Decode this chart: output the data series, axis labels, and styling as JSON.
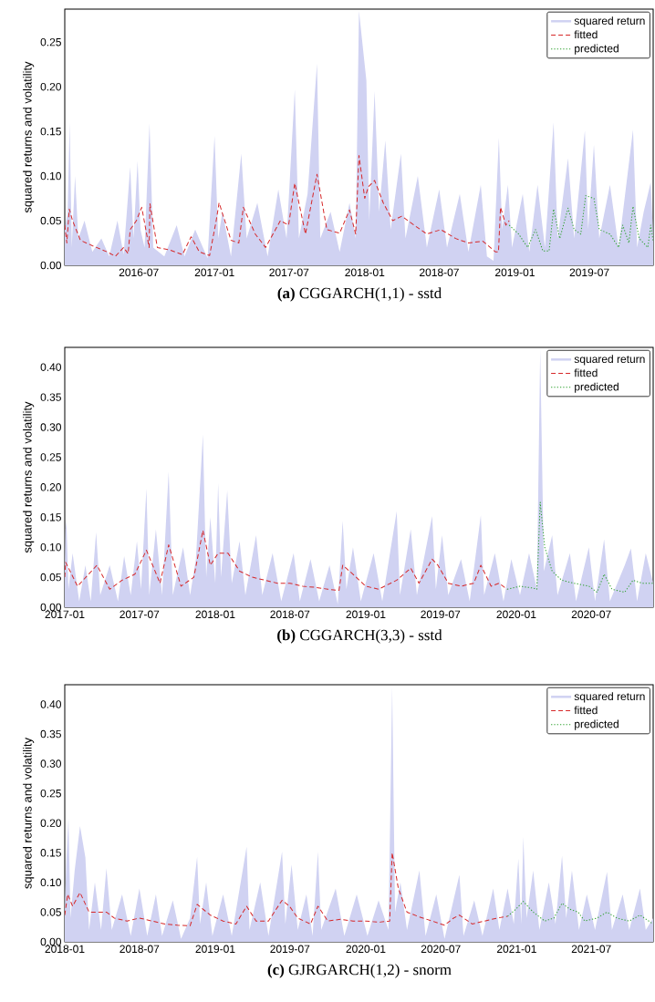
{
  "chart_data": [
    {
      "type": "line",
      "title": "**(a)** CGGARCH(1,1) - sstd",
      "ylabel": "squared returns and volatility",
      "legend": "top right",
      "xlim": [
        "2016-01-03",
        "2019-12-03"
      ],
      "ylim": [
        0,
        0.287
      ],
      "xticks": [
        {
          "value": "2016-07-01",
          "label": "2016-07"
        },
        {
          "value": "2017-01-01",
          "label": "2017-01"
        },
        {
          "value": "2017-07-01",
          "label": "2017-07"
        },
        {
          "value": "2018-01-01",
          "label": "2018-01"
        },
        {
          "value": "2018-07-01",
          "label": "2018-07"
        },
        {
          "value": "2019-01-01",
          "label": "2019-01"
        },
        {
          "value": "2019-07-01",
          "label": "2019-07"
        }
      ],
      "yticks": [
        {
          "value": 0,
          "label": "0.00"
        },
        {
          "value": 0.05,
          "label": "0.05"
        },
        {
          "value": 0.1,
          "label": "0.10"
        },
        {
          "value": 0.15,
          "label": "0.15"
        },
        {
          "value": 0.2,
          "label": "0.20"
        },
        {
          "value": 0.25,
          "label": "0.25"
        }
      ],
      "series": [
        {
          "name": "squared return",
          "type": "area",
          "color": "#d0d2f2",
          "x": [
            "2016-01-03",
            "2016-01-10",
            "2016-01-15",
            "2016-01-20",
            "2016-01-28",
            "2016-02-05",
            "2016-02-20",
            "2016-03-10",
            "2016-04-01",
            "2016-04-20",
            "2016-05-10",
            "2016-05-25",
            "2016-06-10",
            "2016-06-18",
            "2016-06-28",
            "2016-07-05",
            "2016-07-15",
            "2016-07-27",
            "2016-08-05",
            "2016-09-01",
            "2016-10-01",
            "2016-10-20",
            "2016-11-15",
            "2016-12-15",
            "2017-01-01",
            "2017-01-10",
            "2017-01-20",
            "2017-02-10",
            "2017-03-07",
            "2017-03-20",
            "2017-04-15",
            "2017-05-10",
            "2017-06-05",
            "2017-06-25",
            "2017-07-15",
            "2017-07-25",
            "2017-08-15",
            "2017-09-07",
            "2017-09-15",
            "2017-10-10",
            "2017-11-01",
            "2017-11-25",
            "2017-12-10",
            "2017-12-18",
            "2018-01-05",
            "2018-01-12",
            "2018-01-25",
            "2018-02-05",
            "2018-02-20",
            "2018-03-05",
            "2018-03-30",
            "2018-04-10",
            "2018-05-10",
            "2018-06-01",
            "2018-07-01",
            "2018-07-20",
            "2018-08-20",
            "2018-09-10",
            "2018-10-10",
            "2018-10-25",
            "2018-11-10",
            "2018-11-23",
            "2018-12-01",
            "2018-12-15",
            "2018-12-25",
            "2019-01-20",
            "2019-02-05",
            "2019-02-25",
            "2019-03-15",
            "2019-04-05",
            "2019-04-15",
            "2019-05-10",
            "2019-05-25",
            "2019-06-20",
            "2019-06-28",
            "2019-07-12",
            "2019-07-25",
            "2019-08-20",
            "2019-09-10",
            "2019-10-15",
            "2019-10-25",
            "2019-11-10",
            "2019-11-27",
            "2019-12-03"
          ],
          "values": [
            0.04,
            0.06,
            0.16,
            0.02,
            0.1,
            0.03,
            0.05,
            0.015,
            0.03,
            0.01,
            0.05,
            0.012,
            0.11,
            0.03,
            0.117,
            0.04,
            0.02,
            0.159,
            0.02,
            0.01,
            0.045,
            0.01,
            0.04,
            0.008,
            0.145,
            0.03,
            0.06,
            0.01,
            0.125,
            0.03,
            0.07,
            0.01,
            0.085,
            0.03,
            0.197,
            0.03,
            0.08,
            0.226,
            0.03,
            0.06,
            0.015,
            0.07,
            0.03,
            0.285,
            0.207,
            0.05,
            0.195,
            0.06,
            0.14,
            0.04,
            0.125,
            0.03,
            0.1,
            0.02,
            0.085,
            0.02,
            0.08,
            0.015,
            0.09,
            0.01,
            0.005,
            0.143,
            0.04,
            0.09,
            0.02,
            0.08,
            0.015,
            0.09,
            0.02,
            0.16,
            0.03,
            0.12,
            0.03,
            0.151,
            0.04,
            0.135,
            0.03,
            0.09,
            0.02,
            0.152,
            0.02,
            0.06,
            0.093,
            0.03
          ]
        },
        {
          "name": "fitted",
          "line_style": "dashed",
          "color": "#d62728",
          "x": [
            "2016-01-03",
            "2016-01-08",
            "2016-01-14",
            "2016-01-22",
            "2016-02-10",
            "2016-03-10",
            "2016-04-15",
            "2016-05-05",
            "2016-05-25",
            "2016-06-05",
            "2016-06-10",
            "2016-06-25",
            "2016-07-08",
            "2016-07-20",
            "2016-07-26",
            "2016-07-28",
            "2016-08-15",
            "2016-09-15",
            "2016-10-15",
            "2016-11-05",
            "2016-11-25",
            "2016-12-20",
            "2017-01-05",
            "2017-01-12",
            "2017-02-10",
            "2017-03-01",
            "2017-03-12",
            "2017-04-10",
            "2017-05-05",
            "2017-06-10",
            "2017-06-30",
            "2017-07-15",
            "2017-08-10",
            "2017-09-07",
            "2017-10-01",
            "2017-11-01",
            "2017-11-25",
            "2017-12-10",
            "2017-12-18",
            "2018-01-01",
            "2018-01-10",
            "2018-01-25",
            "2018-02-15",
            "2018-03-10",
            "2018-04-01",
            "2018-05-01",
            "2018-06-01",
            "2018-07-05",
            "2018-08-10",
            "2018-09-10",
            "2018-10-15",
            "2018-11-15",
            "2018-11-22",
            "2018-11-27",
            "2018-12-10",
            "2018-12-18"
          ],
          "values": [
            0.045,
            0.025,
            0.063,
            0.05,
            0.028,
            0.022,
            0.015,
            0.01,
            0.02,
            0.013,
            0.04,
            0.05,
            0.065,
            0.035,
            0.02,
            0.069,
            0.02,
            0.017,
            0.012,
            0.032,
            0.015,
            0.011,
            0.05,
            0.07,
            0.028,
            0.025,
            0.065,
            0.035,
            0.02,
            0.05,
            0.045,
            0.092,
            0.035,
            0.102,
            0.04,
            0.036,
            0.062,
            0.035,
            0.123,
            0.075,
            0.088,
            0.095,
            0.07,
            0.05,
            0.055,
            0.045,
            0.035,
            0.04,
            0.03,
            0.025,
            0.027,
            0.015,
            0.015,
            0.065,
            0.045,
            0.05
          ]
        },
        {
          "name": "predicted",
          "line_style": "dotted",
          "color": "#2ca02c",
          "x": [
            "2018-12-18",
            "2019-01-10",
            "2019-02-01",
            "2019-02-20",
            "2019-03-10",
            "2019-03-25",
            "2019-04-05",
            "2019-04-20",
            "2019-05-10",
            "2019-05-25",
            "2019-06-10",
            "2019-06-22",
            "2019-07-12",
            "2019-07-25",
            "2019-08-20",
            "2019-09-10",
            "2019-09-20",
            "2019-10-05",
            "2019-10-15",
            "2019-10-30",
            "2019-11-20",
            "2019-11-27",
            "2019-12-03"
          ],
          "values": [
            0.045,
            0.035,
            0.02,
            0.04,
            0.016,
            0.016,
            0.063,
            0.03,
            0.064,
            0.04,
            0.035,
            0.078,
            0.075,
            0.04,
            0.035,
            0.02,
            0.045,
            0.025,
            0.066,
            0.03,
            0.02,
            0.045,
            0.027
          ]
        }
      ]
    },
    {
      "type": "line",
      "title": "**(b)** CGGARCH(3,3) - sstd",
      "ylabel": "squared returns and volatility",
      "legend": "top right",
      "xlim": [
        "2017-01-01",
        "2020-11-28"
      ],
      "ylim": [
        0,
        0.433
      ],
      "xticks": [
        {
          "value": "2017-01-01",
          "label": "2017-01"
        },
        {
          "value": "2017-07-01",
          "label": "2017-07"
        },
        {
          "value": "2018-01-01",
          "label": "2018-01"
        },
        {
          "value": "2018-07-01",
          "label": "2018-07"
        },
        {
          "value": "2019-01-01",
          "label": "2019-01"
        },
        {
          "value": "2019-07-01",
          "label": "2019-07"
        },
        {
          "value": "2020-01-01",
          "label": "2020-01"
        },
        {
          "value": "2020-07-01",
          "label": "2020-07"
        }
      ],
      "yticks": [
        {
          "value": 0,
          "label": "0.00"
        },
        {
          "value": 0.05,
          "label": "0.05"
        },
        {
          "value": 0.1,
          "label": "0.10"
        },
        {
          "value": 0.15,
          "label": "0.15"
        },
        {
          "value": 0.2,
          "label": "0.20"
        },
        {
          "value": 0.25,
          "label": "0.25"
        },
        {
          "value": 0.3,
          "label": "0.30"
        },
        {
          "value": 0.35,
          "label": "0.35"
        },
        {
          "value": 0.4,
          "label": "0.40"
        }
      ],
      "series": [
        {
          "name": "squared return",
          "type": "area",
          "color": "#d0d2f2",
          "x": [
            "2017-01-01",
            "2017-01-03",
            "2017-01-05",
            "2017-01-10",
            "2017-01-20",
            "2017-02-05",
            "2017-02-20",
            "2017-03-05",
            "2017-03-18",
            "2017-03-28",
            "2017-04-20",
            "2017-05-10",
            "2017-05-25",
            "2017-06-10",
            "2017-06-25",
            "2017-07-05",
            "2017-07-18",
            "2017-07-25",
            "2017-08-10",
            "2017-08-25",
            "2017-09-10",
            "2017-09-20",
            "2017-10-15",
            "2017-11-01",
            "2017-11-15",
            "2017-12-02",
            "2017-12-10",
            "2017-12-20",
            "2018-01-01",
            "2018-01-08",
            "2018-01-15",
            "2018-01-30",
            "2018-02-10",
            "2018-03-01",
            "2018-03-15",
            "2018-04-10",
            "2018-04-25",
            "2018-05-20",
            "2018-06-10",
            "2018-07-10",
            "2018-07-25",
            "2018-08-20",
            "2018-09-10",
            "2018-10-05",
            "2018-10-25",
            "2018-11-06",
            "2018-11-15",
            "2018-12-01",
            "2018-12-20",
            "2019-01-20",
            "2019-02-10",
            "2019-03-17",
            "2019-03-25",
            "2019-04-20",
            "2019-05-05",
            "2019-06-11",
            "2019-06-20",
            "2019-07-05",
            "2019-07-20",
            "2019-08-20",
            "2019-09-10",
            "2019-10-07",
            "2019-10-15",
            "2019-11-10",
            "2019-12-01",
            "2019-12-20",
            "2020-01-10",
            "2020-02-01",
            "2020-02-20",
            "2020-02-28",
            "2020-03-08",
            "2020-03-28",
            "2020-04-10",
            "2020-05-10",
            "2020-05-25",
            "2020-06-25",
            "2020-07-10",
            "2020-08-01",
            "2020-08-15",
            "2020-09-20",
            "2020-10-05",
            "2020-10-20",
            "2020-11-10",
            "2020-11-28"
          ],
          "values": [
            0.06,
            0.13,
            0.145,
            0.03,
            0.09,
            0.01,
            0.07,
            0.01,
            0.125,
            0.02,
            0.07,
            0.01,
            0.085,
            0.02,
            0.11,
            0.03,
            0.198,
            0.02,
            0.13,
            0.02,
            0.226,
            0.02,
            0.1,
            0.02,
            0.08,
            0.288,
            0.05,
            0.15,
            0.04,
            0.207,
            0.05,
            0.195,
            0.04,
            0.11,
            0.02,
            0.12,
            0.02,
            0.09,
            0.01,
            0.09,
            0.01,
            0.08,
            0.01,
            0.07,
            0.005,
            0.144,
            0.03,
            0.1,
            0.01,
            0.09,
            0.01,
            0.16,
            0.02,
            0.13,
            0.02,
            0.152,
            0.03,
            0.12,
            0.02,
            0.08,
            0.01,
            0.153,
            0.02,
            0.09,
            0.01,
            0.08,
            0.02,
            0.09,
            0.03,
            0.43,
            0.06,
            0.12,
            0.02,
            0.09,
            0.01,
            0.1,
            0.01,
            0.113,
            0.01,
            0.07,
            0.098,
            0.01,
            0.09,
            0.04
          ]
        },
        {
          "name": "fitted",
          "line_style": "dashed",
          "color": "#d62728",
          "x": [
            "2017-01-01",
            "2017-01-03",
            "2017-02-01",
            "2017-03-20",
            "2017-04-20",
            "2017-05-20",
            "2017-06-20",
            "2017-07-18",
            "2017-08-20",
            "2017-09-10",
            "2017-10-10",
            "2017-11-10",
            "2017-12-02",
            "2017-12-20",
            "2018-01-08",
            "2018-02-01",
            "2018-03-01",
            "2018-04-01",
            "2018-05-01",
            "2018-06-01",
            "2018-07-01",
            "2018-08-01",
            "2018-09-01",
            "2018-10-01",
            "2018-10-28",
            "2018-11-06",
            "2018-12-01",
            "2019-01-01",
            "2019-02-01",
            "2019-03-17",
            "2019-04-20",
            "2019-05-10",
            "2019-06-11",
            "2019-06-25",
            "2019-07-20",
            "2019-08-20",
            "2019-09-20",
            "2019-10-07",
            "2019-11-01",
            "2019-11-20",
            "2019-12-10"
          ],
          "values": [
            0.05,
            0.075,
            0.035,
            0.07,
            0.03,
            0.045,
            0.055,
            0.095,
            0.04,
            0.104,
            0.035,
            0.05,
            0.128,
            0.07,
            0.09,
            0.09,
            0.06,
            0.05,
            0.045,
            0.04,
            0.04,
            0.035,
            0.033,
            0.03,
            0.028,
            0.07,
            0.055,
            0.035,
            0.03,
            0.045,
            0.065,
            0.04,
            0.08,
            0.07,
            0.04,
            0.035,
            0.04,
            0.07,
            0.035,
            0.04,
            0.03
          ]
        },
        {
          "name": "predicted",
          "line_style": "dotted",
          "color": "#2ca02c",
          "x": [
            "2019-12-10",
            "2020-01-10",
            "2020-02-10",
            "2020-02-20",
            "2020-02-28",
            "2020-03-10",
            "2020-03-28",
            "2020-04-20",
            "2020-05-20",
            "2020-06-25",
            "2020-07-15",
            "2020-08-01",
            "2020-08-20",
            "2020-09-20",
            "2020-10-10",
            "2020-11-01",
            "2020-11-28"
          ],
          "values": [
            0.03,
            0.035,
            0.032,
            0.03,
            0.175,
            0.1,
            0.06,
            0.045,
            0.04,
            0.035,
            0.025,
            0.055,
            0.03,
            0.025,
            0.045,
            0.04,
            0.04
          ]
        }
      ]
    },
    {
      "type": "line",
      "title": "**(c)** GJRGARCH(1,2) - snorm",
      "ylabel": "squared returns and volatility",
      "legend": "top right",
      "xlim": [
        "2018-01-01",
        "2021-11-28"
      ],
      "ylim": [
        0,
        0.433
      ],
      "xticks": [
        {
          "value": "2018-01-01",
          "label": "2018-01"
        },
        {
          "value": "2018-07-01",
          "label": "2018-07"
        },
        {
          "value": "2019-01-01",
          "label": "2019-01"
        },
        {
          "value": "2019-07-01",
          "label": "2019-07"
        },
        {
          "value": "2020-01-01",
          "label": "2020-01"
        },
        {
          "value": "2020-07-01",
          "label": "2020-07"
        },
        {
          "value": "2021-01-01",
          "label": "2021-01"
        },
        {
          "value": "2021-07-01",
          "label": "2021-07"
        }
      ],
      "yticks": [
        {
          "value": 0,
          "label": "0.00"
        },
        {
          "value": 0.05,
          "label": "0.05"
        },
        {
          "value": 0.1,
          "label": "0.10"
        },
        {
          "value": 0.15,
          "label": "0.15"
        },
        {
          "value": 0.2,
          "label": "0.20"
        },
        {
          "value": 0.25,
          "label": "0.25"
        },
        {
          "value": 0.3,
          "label": "0.30"
        },
        {
          "value": 0.35,
          "label": "0.35"
        },
        {
          "value": 0.4,
          "label": "0.40"
        }
      ],
      "series": [
        {
          "name": "squared return",
          "type": "area",
          "color": "#d0d2f2",
          "x": [
            "2018-01-01",
            "2018-01-05",
            "2018-01-10",
            "2018-01-15",
            "2018-01-25",
            "2018-02-07",
            "2018-02-20",
            "2018-03-01",
            "2018-03-15",
            "2018-03-30",
            "2018-04-12",
            "2018-04-25",
            "2018-05-20",
            "2018-06-10",
            "2018-07-01",
            "2018-07-20",
            "2018-08-10",
            "2018-08-25",
            "2018-09-20",
            "2018-10-10",
            "2018-11-01",
            "2018-11-18",
            "2018-11-25",
            "2018-12-10",
            "2018-12-25",
            "2019-01-20",
            "2019-02-10",
            "2019-03-18",
            "2019-03-25",
            "2019-04-20",
            "2019-05-10",
            "2019-06-12",
            "2019-06-20",
            "2019-07-05",
            "2019-07-20",
            "2019-08-10",
            "2019-08-25",
            "2019-09-07",
            "2019-09-15",
            "2019-10-20",
            "2019-11-10",
            "2019-12-10",
            "2020-01-05",
            "2020-02-01",
            "2020-02-25",
            "2020-03-05",
            "2020-03-12",
            "2020-03-25",
            "2020-04-10",
            "2020-05-10",
            "2020-05-25",
            "2020-06-20",
            "2020-07-10",
            "2020-08-15",
            "2020-08-25",
            "2020-09-20",
            "2020-10-10",
            "2020-11-05",
            "2020-11-20",
            "2020-12-10",
            "2020-12-25",
            "2021-01-05",
            "2021-01-12",
            "2021-01-17",
            "2021-01-25",
            "2021-02-10",
            "2021-02-25",
            "2021-03-20",
            "2021-04-05",
            "2021-04-21",
            "2021-05-01",
            "2021-05-15",
            "2021-06-01",
            "2021-06-20",
            "2021-07-10",
            "2021-08-08",
            "2021-08-20",
            "2021-09-15",
            "2021-10-01",
            "2021-10-27",
            "2021-11-10",
            "2021-11-28"
          ],
          "values": [
            0.05,
            0.139,
            0.208,
            0.04,
            0.12,
            0.195,
            0.142,
            0.02,
            0.1,
            0.02,
            0.124,
            0.02,
            0.08,
            0.01,
            0.09,
            0.01,
            0.08,
            0.01,
            0.07,
            0.005,
            0.04,
            0.143,
            0.03,
            0.1,
            0.01,
            0.08,
            0.01,
            0.16,
            0.02,
            0.1,
            0.01,
            0.152,
            0.03,
            0.13,
            0.02,
            0.08,
            0.01,
            0.152,
            0.02,
            0.09,
            0.01,
            0.08,
            0.01,
            0.07,
            0.02,
            0.43,
            0.05,
            0.1,
            0.02,
            0.12,
            0.01,
            0.08,
            0.005,
            0.113,
            0.01,
            0.07,
            0.01,
            0.09,
            0.02,
            0.09,
            0.03,
            0.14,
            0.03,
            0.177,
            0.04,
            0.12,
            0.02,
            0.1,
            0.03,
            0.145,
            0.04,
            0.12,
            0.02,
            0.08,
            0.02,
            0.118,
            0.02,
            0.08,
            0.02,
            0.09,
            0.02,
            0.04
          ]
        },
        {
          "name": "fitted",
          "line_style": "dashed",
          "color": "#d62728",
          "x": [
            "2018-01-01",
            "2018-01-08",
            "2018-01-20",
            "2018-02-07",
            "2018-03-01",
            "2018-04-12",
            "2018-05-01",
            "2018-06-01",
            "2018-07-01",
            "2018-08-01",
            "2018-09-01",
            "2018-10-01",
            "2018-11-01",
            "2018-11-18",
            "2018-12-20",
            "2019-01-20",
            "2019-02-20",
            "2019-03-18",
            "2019-04-10",
            "2019-05-10",
            "2019-06-12",
            "2019-06-30",
            "2019-07-20",
            "2019-08-20",
            "2019-09-07",
            "2019-10-01",
            "2019-11-01",
            "2019-12-01",
            "2020-01-01",
            "2020-02-01",
            "2020-02-28",
            "2020-03-05",
            "2020-03-20",
            "2020-04-10",
            "2020-05-10",
            "2020-06-10",
            "2020-07-10",
            "2020-08-01",
            "2020-08-15",
            "2020-09-15",
            "2020-10-15",
            "2020-11-15",
            "2020-12-10"
          ],
          "values": [
            0.045,
            0.08,
            0.06,
            0.083,
            0.05,
            0.05,
            0.04,
            0.035,
            0.04,
            0.035,
            0.03,
            0.028,
            0.027,
            0.063,
            0.045,
            0.035,
            0.03,
            0.06,
            0.035,
            0.035,
            0.07,
            0.06,
            0.04,
            0.03,
            0.06,
            0.035,
            0.038,
            0.035,
            0.035,
            0.033,
            0.035,
            0.15,
            0.09,
            0.05,
            0.042,
            0.035,
            0.028,
            0.04,
            0.045,
            0.03,
            0.035,
            0.04,
            0.043
          ]
        },
        {
          "name": "predicted",
          "line_style": "dotted",
          "color": "#2ca02c",
          "x": [
            "2020-12-10",
            "2020-12-30",
            "2021-01-17",
            "2021-02-10",
            "2021-03-10",
            "2021-04-01",
            "2021-04-21",
            "2021-05-10",
            "2021-05-30",
            "2021-06-15",
            "2021-07-15",
            "2021-08-08",
            "2021-09-01",
            "2021-10-01",
            "2021-10-27",
            "2021-11-28"
          ],
          "values": [
            0.043,
            0.055,
            0.068,
            0.05,
            0.035,
            0.04,
            0.065,
            0.055,
            0.05,
            0.035,
            0.04,
            0.05,
            0.04,
            0.035,
            0.045,
            0.03
          ]
        }
      ]
    }
  ]
}
